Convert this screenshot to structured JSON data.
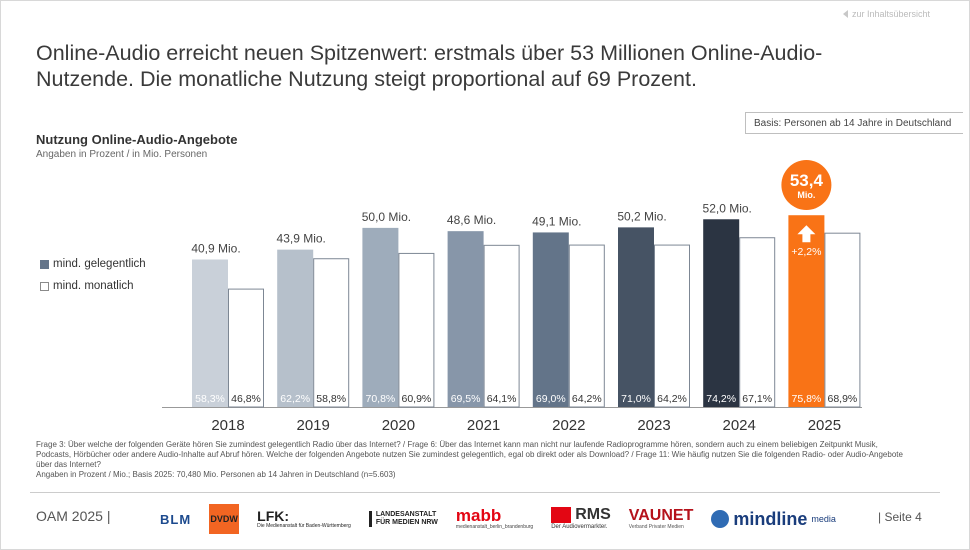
{
  "nav": {
    "back_link": "zur Inhaltsübersicht"
  },
  "headline": "Online-Audio erreicht neuen Spitzenwert: erstmals über 53 Millionen Online-Audio-Nutzende. Die monatliche Nutzung steigt proportional auf 69 Prozent.",
  "basis": "Basis: Personen ab 14 Jahre in Deutschland",
  "chart_data": {
    "type": "bar",
    "title": "Nutzung Online-Audio-Angebote",
    "subtitle": "Angaben in Prozent / in Mio. Personen",
    "categories": [
      "2018",
      "2019",
      "2020",
      "2021",
      "2022",
      "2023",
      "2024",
      "2025"
    ],
    "series": [
      {
        "name": "mind. gelegentlich",
        "values": [
          58.3,
          62.2,
          70.8,
          69.5,
          69.0,
          71.0,
          74.2,
          75.8
        ],
        "value_labels": [
          "58,3%",
          "62,2%",
          "70,8%",
          "69,5%",
          "69,0%",
          "71,0%",
          "74,2%",
          "75,8%"
        ],
        "million_labels": [
          "40,9 Mio.",
          "43,9 Mio.",
          "50,0 Mio.",
          "48,6 Mio.",
          "49,1 Mio.",
          "50,2 Mio.",
          "52,0 Mio.",
          "53,4 Mio."
        ],
        "colors": [
          "#c9d0d9",
          "#b6c0cb",
          "#9eacbb",
          "#8796a9",
          "#637489",
          "#465364",
          "#2b3442",
          "#f97316"
        ]
      },
      {
        "name": "mind. monatlich",
        "values": [
          46.8,
          58.8,
          60.9,
          64.1,
          64.2,
          64.2,
          67.1,
          68.9
        ],
        "value_labels": [
          "46,8%",
          "58,8%",
          "60,9%",
          "64,1%",
          "64,2%",
          "64,2%",
          "67,1%",
          "68,9%"
        ]
      }
    ],
    "highlight": {
      "value": "53,4",
      "unit": "Mio.",
      "change": "+2,2%",
      "color": "#f97316"
    },
    "ylim": [
      0,
      100
    ],
    "grid": false,
    "legend_position": "left"
  },
  "footnote": {
    "lines": [
      "Frage 3: Über welche der folgenden Geräte hören Sie zumindest gelegentlich Radio über das Internet? / Frage 6: Über das Internet kann man nicht nur laufende Radioprogramme hören, sondern auch zu einem beliebigen Zeitpunkt Musik,",
      "Podcasts, Hörbücher oder andere Audio-Inhalte auf Abruf hören. Welche der folgenden Angebote nutzen Sie zumindest gelegentlich, egal ob direkt oder als Download? / Frage 11: Wie häufig nutzen Sie die folgenden Radio- oder Audio-Angebote",
      "über das Internet?",
      "Angaben in Prozent / Mio.; Basis 2025: 70,480 Mio. Personen ab 14 Jahren in Deutschland (n=5.603)"
    ]
  },
  "footer": {
    "left": "OAM 2025 |",
    "right": "| Seite 4",
    "logos": {
      "blm": "BLM",
      "dvdw": "DVDW",
      "lfk": "LFK:",
      "lfk_sub": "Die Medienanstalt für Baden-Württemberg",
      "lfm_1": "LANDESANSTALT",
      "lfm_2": "FÜR MEDIEN NRW",
      "mabb": "mabb",
      "mabb_sub": "medienanstalt_berlin_brandenburg",
      "rms": "RMS",
      "rms_sub": "Der Audiovermarkter.",
      "vaunet": "VAUNET",
      "vaunet_sub": "Verband Privater Medien",
      "mindline": "mindline",
      "mindline_sup": "media"
    }
  }
}
